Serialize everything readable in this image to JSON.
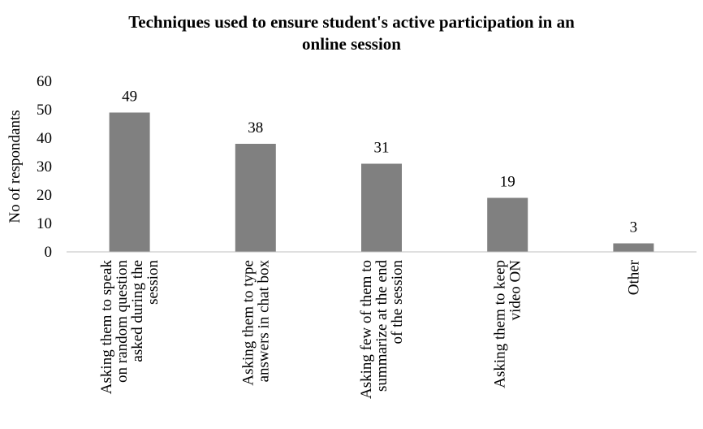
{
  "chart_data": {
    "type": "bar",
    "title_lines": [
      "Techniques used to ensure student's active participation in an",
      "online session"
    ],
    "xlabel": "",
    "ylabel": "No of respondants",
    "ylim": [
      0,
      60
    ],
    "yticks": [
      "0",
      "10",
      "20",
      "30",
      "40",
      "50",
      "60"
    ],
    "grid": false,
    "categories": [
      [
        "Asking them to speak",
        "on random question",
        "asked during the",
        "session"
      ],
      [
        "Asking them to type",
        "answers in chat box"
      ],
      [
        "Asking few of them to",
        "summarize at the end",
        "of the session"
      ],
      [
        "Asking them to keep",
        "video ON"
      ],
      [
        "Other"
      ]
    ],
    "values": [
      49,
      38,
      31,
      19,
      3
    ],
    "data_labels": [
      "49",
      "38",
      "31",
      "19",
      "3"
    ],
    "bar_color": "#808080",
    "axis_color": "#bfbfbf"
  }
}
